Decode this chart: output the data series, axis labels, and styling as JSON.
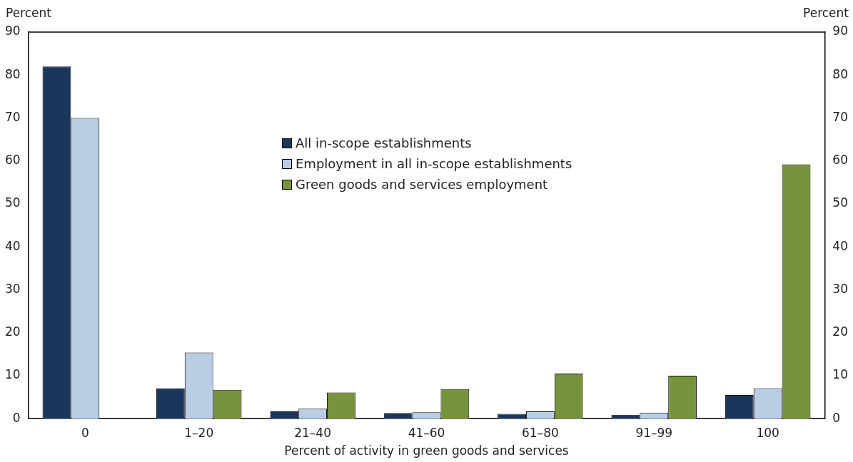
{
  "chart_data": {
    "type": "bar",
    "xlabel": "Percent of activity in green goods and services",
    "ylabel": "Percent",
    "y2label": "Percent",
    "categories": [
      "0",
      "1–20",
      "21–40",
      "41–60",
      "61–80",
      "91–99",
      "100"
    ],
    "series": [
      {
        "name": "All in-scope establishments",
        "color": "#1a365d",
        "values": [
          82.0,
          7.1,
          1.7,
          1.3,
          1.1,
          0.9,
          5.5
        ]
      },
      {
        "name": "Employment in all in-scope establishments",
        "color": "#b9cde5",
        "values": [
          70.0,
          15.4,
          2.3,
          1.5,
          1.7,
          1.4,
          7.1
        ]
      },
      {
        "name": "Green goods and services employment",
        "color": "#77933c",
        "values": [
          null,
          6.7,
          6.1,
          6.9,
          10.5,
          10.0,
          59.2
        ]
      }
    ],
    "ylim": [
      0,
      90
    ],
    "yticks": [
      0,
      10,
      20,
      30,
      40,
      50,
      60,
      70,
      80,
      90
    ],
    "y2lim": [
      0,
      90
    ],
    "y2ticks": [
      0,
      10,
      20,
      30,
      40,
      50,
      60,
      70,
      80,
      90
    ],
    "grid": false,
    "legend": "top"
  }
}
